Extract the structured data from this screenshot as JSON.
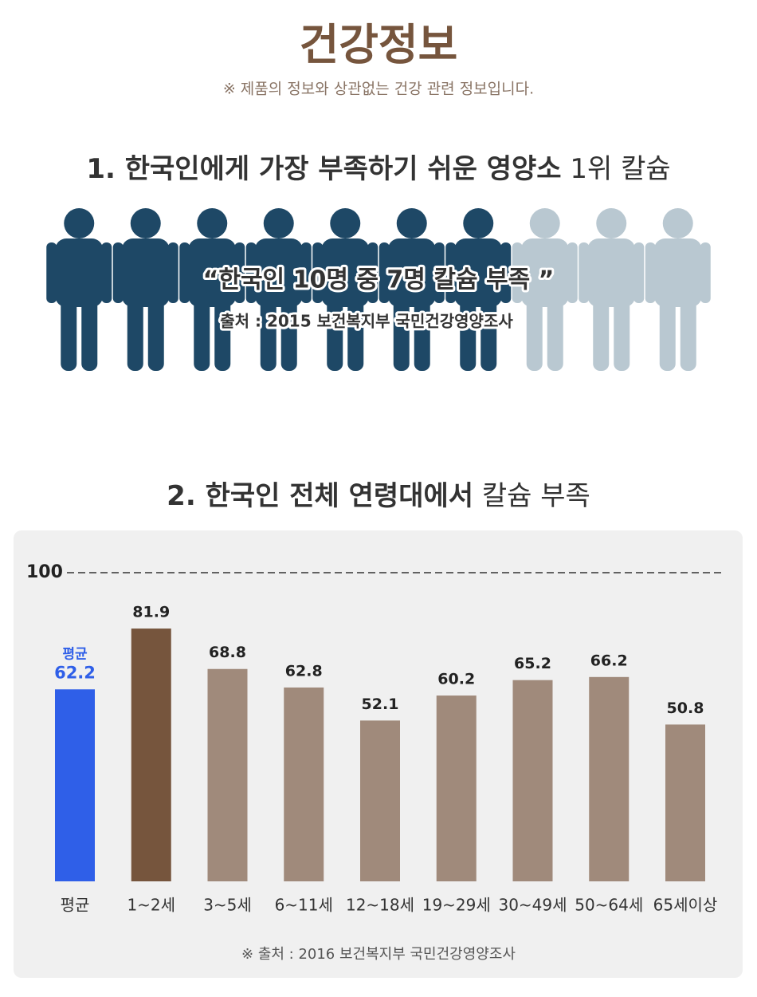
{
  "header": {
    "title": "건강정보",
    "note": "※ 제품의 정보와 상관없는 건강 관련 정보입니다."
  },
  "section1": {
    "title_bold": "1. 한국인에게 가장 부족하기 쉬운 영양소",
    "title_light": "1위 칼슘",
    "icons": {
      "total": 10,
      "highlighted": 7,
      "color": "#1e4866",
      "rest_color": "#b9c8d1"
    },
    "quote": "“한국인 10명 중 7명 칼슘 부족 ”",
    "source": "출처 : 2015 보건복지부 국민건강영양조사"
  },
  "chart_data": {
    "type": "bar",
    "title_bold": "2. 한국인 전체 연령대에서",
    "title_light": "칼슘 부족",
    "categories": [
      "평균",
      "1~2세",
      "3~5세",
      "6~11세",
      "12~18세",
      "19~29세",
      "30~49세",
      "50~64세",
      "65세이상"
    ],
    "values": [
      62.2,
      81.9,
      68.8,
      62.8,
      52.1,
      60.2,
      65.2,
      66.2,
      50.8
    ],
    "colors": [
      "#2f5fe8",
      "#76553d",
      "#a08a7b",
      "#a08a7b",
      "#a08a7b",
      "#a08a7b",
      "#a08a7b",
      "#a08a7b",
      "#a08a7b"
    ],
    "ylim": [
      0,
      100
    ],
    "yticks": [
      100
    ],
    "source": "※ 출처 : 2016 보건복지부 국민건강영양조사"
  }
}
